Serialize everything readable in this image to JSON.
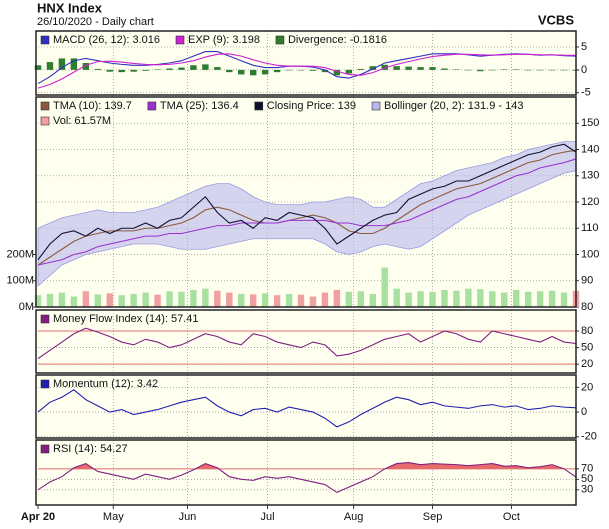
{
  "header": {
    "title": "HNX Index",
    "subtitle": "26/10/2020 - Daily chart",
    "source": "VCBS"
  },
  "chart_data": [
    {
      "type": "line",
      "ylim": [
        -5.5,
        8.5
      ],
      "yticks": [
        5,
        0,
        -5
      ],
      "series": [
        {
          "name": "MACD (26, 12): 3.016",
          "type": "line",
          "color": "#3030c0",
          "values": [
            -3,
            -1.5,
            0.5,
            2,
            2.5,
            2,
            1.5,
            1.2,
            1,
            1,
            1.2,
            1.5,
            2,
            3,
            4,
            4,
            3,
            2,
            1,
            0.5,
            0.5,
            0.8,
            0.8,
            0.6,
            0,
            -1.5,
            -1.8,
            -1,
            0.2,
            1.5,
            2,
            2.5,
            3,
            3.5,
            3.5,
            3.5,
            3.3,
            3,
            3.2,
            3.4,
            3.5,
            3.4,
            3.2,
            3.3,
            3.1,
            3.016
          ]
        },
        {
          "name": "EXP (9): 3.198",
          "type": "line",
          "color": "#d020d0",
          "values": [
            -4,
            -3.2,
            -2,
            -0.5,
            1,
            1.8,
            1.9,
            1.7,
            1.4,
            1.2,
            1.1,
            1.2,
            1.5,
            2,
            2.8,
            3.4,
            3.5,
            3,
            2.2,
            1.5,
            1,
            0.8,
            0.8,
            0.8,
            0.5,
            -0.3,
            -1,
            -1.2,
            -0.6,
            0.4,
            1.2,
            1.8,
            2.4,
            2.9,
            3.2,
            3.4,
            3.4,
            3.3,
            3.2,
            3.3,
            3.4,
            3.4,
            3.3,
            3.3,
            3.2,
            3.198
          ]
        },
        {
          "name": "Divergence: -0.1816",
          "type": "bar",
          "color": "#2e7d2e",
          "values": [
            1,
            1.7,
            2.5,
            2.5,
            1.5,
            0.2,
            -0.4,
            -0.5,
            -0.4,
            -0.2,
            0.1,
            0.3,
            0.5,
            1,
            1.2,
            0.6,
            -0.5,
            -1,
            -1.2,
            -1,
            -0.5,
            0,
            0,
            -0.2,
            -0.5,
            -1.2,
            -0.8,
            0.2,
            0.8,
            1.1,
            0.8,
            0.7,
            0.6,
            0.6,
            0.3,
            0.1,
            -0.1,
            -0.3,
            0,
            0.1,
            0.1,
            0,
            -0.1,
            0,
            -0.1,
            -0.1816
          ]
        }
      ]
    },
    {
      "type": "line",
      "ylim": [
        80,
        160
      ],
      "yticks": [
        80,
        90,
        100,
        110,
        120,
        130,
        140,
        150
      ],
      "y2lim": [
        0,
        800000000
      ],
      "y2ticks": [
        {
          "value": 0,
          "label": "0M"
        },
        {
          "value": 100000000,
          "label": "100M"
        },
        {
          "value": 200000000,
          "label": "200M"
        }
      ],
      "series": [
        {
          "name": "TMA (10): 139.7",
          "type": "line",
          "color": "#8b5a3c",
          "values": [
            96,
            99,
            102,
            105,
            107,
            108,
            109,
            109,
            109,
            110,
            110,
            111,
            112,
            114,
            117,
            118,
            117,
            115,
            113,
            112,
            112,
            113,
            114,
            115,
            114,
            112,
            109,
            108,
            108,
            110,
            113,
            116,
            119,
            121,
            123,
            125,
            126,
            127,
            129,
            131,
            133,
            135,
            136,
            138,
            139,
            139.7
          ]
        },
        {
          "name": "TMA (25): 136.4",
          "type": "line",
          "color": "#9a30d0",
          "values": [
            96,
            97,
            98,
            100,
            101,
            103,
            104,
            105,
            106,
            107,
            107,
            108,
            108,
            109,
            110,
            111,
            111,
            112,
            112,
            112,
            112,
            113,
            113,
            113,
            113,
            112,
            112,
            111,
            111,
            111,
            112,
            113,
            115,
            117,
            119,
            121,
            122,
            124,
            126,
            128,
            130,
            131,
            133,
            134,
            135,
            136.4
          ]
        },
        {
          "name": "Closing Price: 139",
          "type": "line",
          "color": "#101030",
          "values": [
            98,
            104,
            108,
            109,
            107,
            110,
            108,
            110,
            110,
            112,
            110,
            113,
            114,
            118,
            122,
            116,
            112,
            113,
            110,
            114,
            113,
            116,
            115,
            114,
            110,
            104,
            107,
            110,
            113,
            115,
            116,
            121,
            123,
            125,
            126,
            128,
            128,
            130,
            132,
            134,
            136,
            138,
            139,
            141,
            142,
            139
          ]
        },
        {
          "name": "Bollinger (20, 2): 131.9 - 143",
          "type": "band",
          "color": "#b8b8ee",
          "upper": [
            110,
            112,
            114,
            115,
            116,
            117,
            116,
            116,
            116,
            117,
            118,
            120,
            122,
            124,
            126,
            127,
            127,
            125,
            122,
            120,
            119,
            119,
            119,
            120,
            120,
            121,
            122,
            121,
            118,
            118,
            121,
            124,
            127,
            128,
            130,
            132,
            133,
            134,
            135,
            137,
            138,
            140,
            141,
            142,
            143,
            143
          ],
          "lower": [
            88,
            92,
            96,
            98,
            100,
            101,
            102,
            103,
            104,
            104,
            104,
            103,
            102,
            102,
            102,
            103,
            104,
            105,
            106,
            106,
            106,
            106,
            106,
            106,
            104,
            101,
            100,
            101,
            103,
            104,
            103,
            102,
            103,
            106,
            109,
            112,
            115,
            117,
            119,
            121,
            123,
            125,
            127,
            129,
            131,
            131.9
          ]
        },
        {
          "name": "Vol: 61.57M",
          "type": "bar",
          "axis": "y2",
          "color": "#f0a0a0",
          "up_color": "#a8e0a0",
          "up_down_by_series": 2,
          "values": [
            45000000,
            50000000,
            55000000,
            40000000,
            60000000,
            48000000,
            52000000,
            45000000,
            50000000,
            55000000,
            47000000,
            60000000,
            58000000,
            65000000,
            70000000,
            62000000,
            55000000,
            50000000,
            48000000,
            52000000,
            45000000,
            50000000,
            47000000,
            40000000,
            55000000,
            65000000,
            58000000,
            60000000,
            50000000,
            150000000,
            70000000,
            55000000,
            60000000,
            58000000,
            65000000,
            62000000,
            70000000,
            68000000,
            60000000,
            55000000,
            65000000,
            58000000,
            60000000,
            62000000,
            55000000,
            61570000
          ]
        }
      ]
    },
    {
      "type": "line",
      "ylim": [
        4,
        118
      ],
      "yticks": [
        80,
        50,
        20
      ],
      "reference_lines": [
        80,
        20
      ],
      "reference_color": "#e07070",
      "series": [
        {
          "name": "Money Flow Index (14): 57.41",
          "type": "line",
          "color": "#802080",
          "values": [
            30,
            45,
            60,
            75,
            85,
            78,
            70,
            60,
            55,
            65,
            60,
            50,
            55,
            65,
            75,
            70,
            60,
            55,
            75,
            70,
            60,
            55,
            50,
            60,
            55,
            35,
            38,
            45,
            55,
            65,
            70,
            75,
            60,
            70,
            80,
            75,
            65,
            60,
            80,
            75,
            70,
            65,
            60,
            70,
            60,
            57.41
          ]
        }
      ]
    },
    {
      "type": "line",
      "ylim": [
        -21,
        30
      ],
      "yticks": [
        20,
        0,
        -20
      ],
      "series": [
        {
          "name": "Momentum (12): 3.42",
          "type": "line",
          "color": "#2020b0",
          "values": [
            0,
            8,
            12,
            18,
            10,
            5,
            0,
            2,
            -2,
            0,
            2,
            5,
            8,
            10,
            12,
            5,
            0,
            -3,
            2,
            3,
            0,
            4,
            2,
            0,
            -5,
            -12,
            -8,
            -2,
            3,
            8,
            12,
            10,
            6,
            8,
            5,
            4,
            3,
            5,
            6,
            4,
            5,
            2,
            3,
            5,
            4,
            3.42
          ]
        }
      ]
    },
    {
      "type": "line",
      "ylim": [
        1,
        125
      ],
      "yticks": [
        70,
        50,
        30
      ],
      "reference_lines": [
        70
      ],
      "reference_color": "#e07070",
      "overbought_fill": "#e86a6a",
      "xlim": [
        0,
        45
      ],
      "xticks": [
        {
          "value": 0,
          "label": "Apr 20"
        },
        {
          "value": 6.3,
          "label": "May"
        },
        {
          "value": 12.5,
          "label": "Jun"
        },
        {
          "value": 19.2,
          "label": "Jul"
        },
        {
          "value": 26.4,
          "label": "Aug"
        },
        {
          "value": 33,
          "label": "Sep"
        },
        {
          "value": 39.6,
          "label": "Oct"
        }
      ],
      "series": [
        {
          "name": "RSI (14): 54.27",
          "type": "line",
          "color": "#802080",
          "values": [
            30,
            45,
            55,
            72,
            80,
            65,
            60,
            55,
            50,
            60,
            55,
            50,
            58,
            68,
            80,
            72,
            55,
            50,
            48,
            55,
            52,
            55,
            50,
            45,
            40,
            25,
            35,
            45,
            55,
            70,
            80,
            82,
            78,
            80,
            79,
            78,
            76,
            78,
            80,
            75,
            76,
            72,
            74,
            78,
            70,
            54.27
          ]
        }
      ]
    }
  ]
}
